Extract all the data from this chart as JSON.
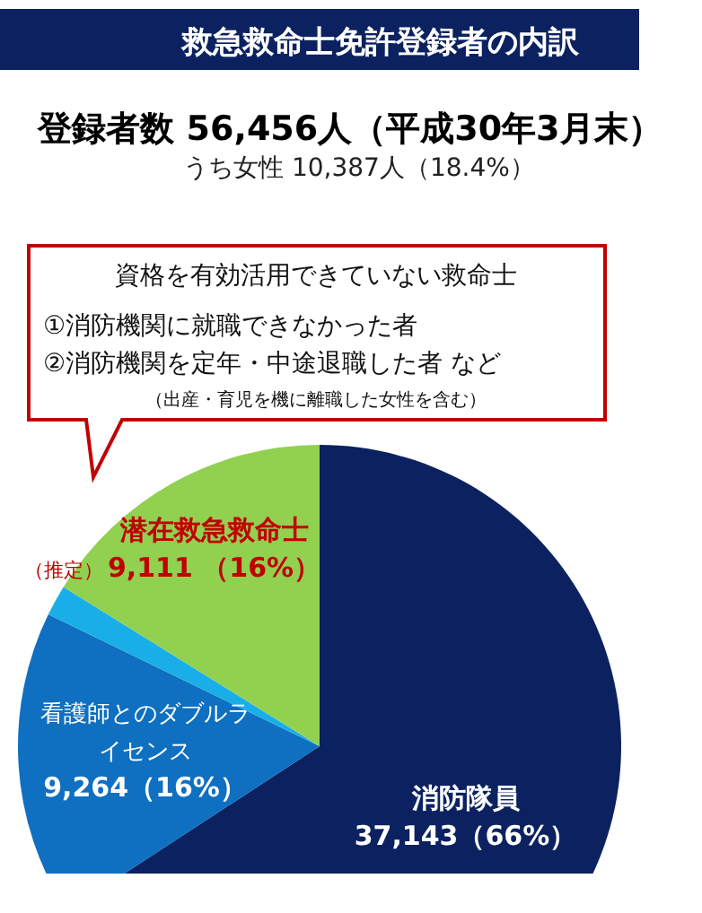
{
  "chart_data": {
    "type": "pie",
    "title": "救急救命士免許登録者の内訳",
    "subtitle": "登録者数  56,456人（平成30年3月末）",
    "annotations": [
      "うち女性  10,387人（18.4%）",
      "資格を有効活用できていない救命士",
      "①消防機関に就職できなかった者",
      "②消防機関を定年・中途退職した者  など",
      "（出産・育児を機に離職した女性を含む）",
      "（推定）"
    ],
    "categories": [
      "消防隊員",
      "看護師とのダブルライセンス",
      null,
      "潜在救急救命士"
    ],
    "values": [
      37143,
      9264,
      938,
      9111
    ],
    "value_labels": [
      "37,143（66%）",
      "9,264（16%）",
      null,
      "9,111 （16%）"
    ],
    "colors": [
      "#0c2260",
      "#0f6fc0",
      "#1aaee8",
      "#92d050"
    ]
  }
}
